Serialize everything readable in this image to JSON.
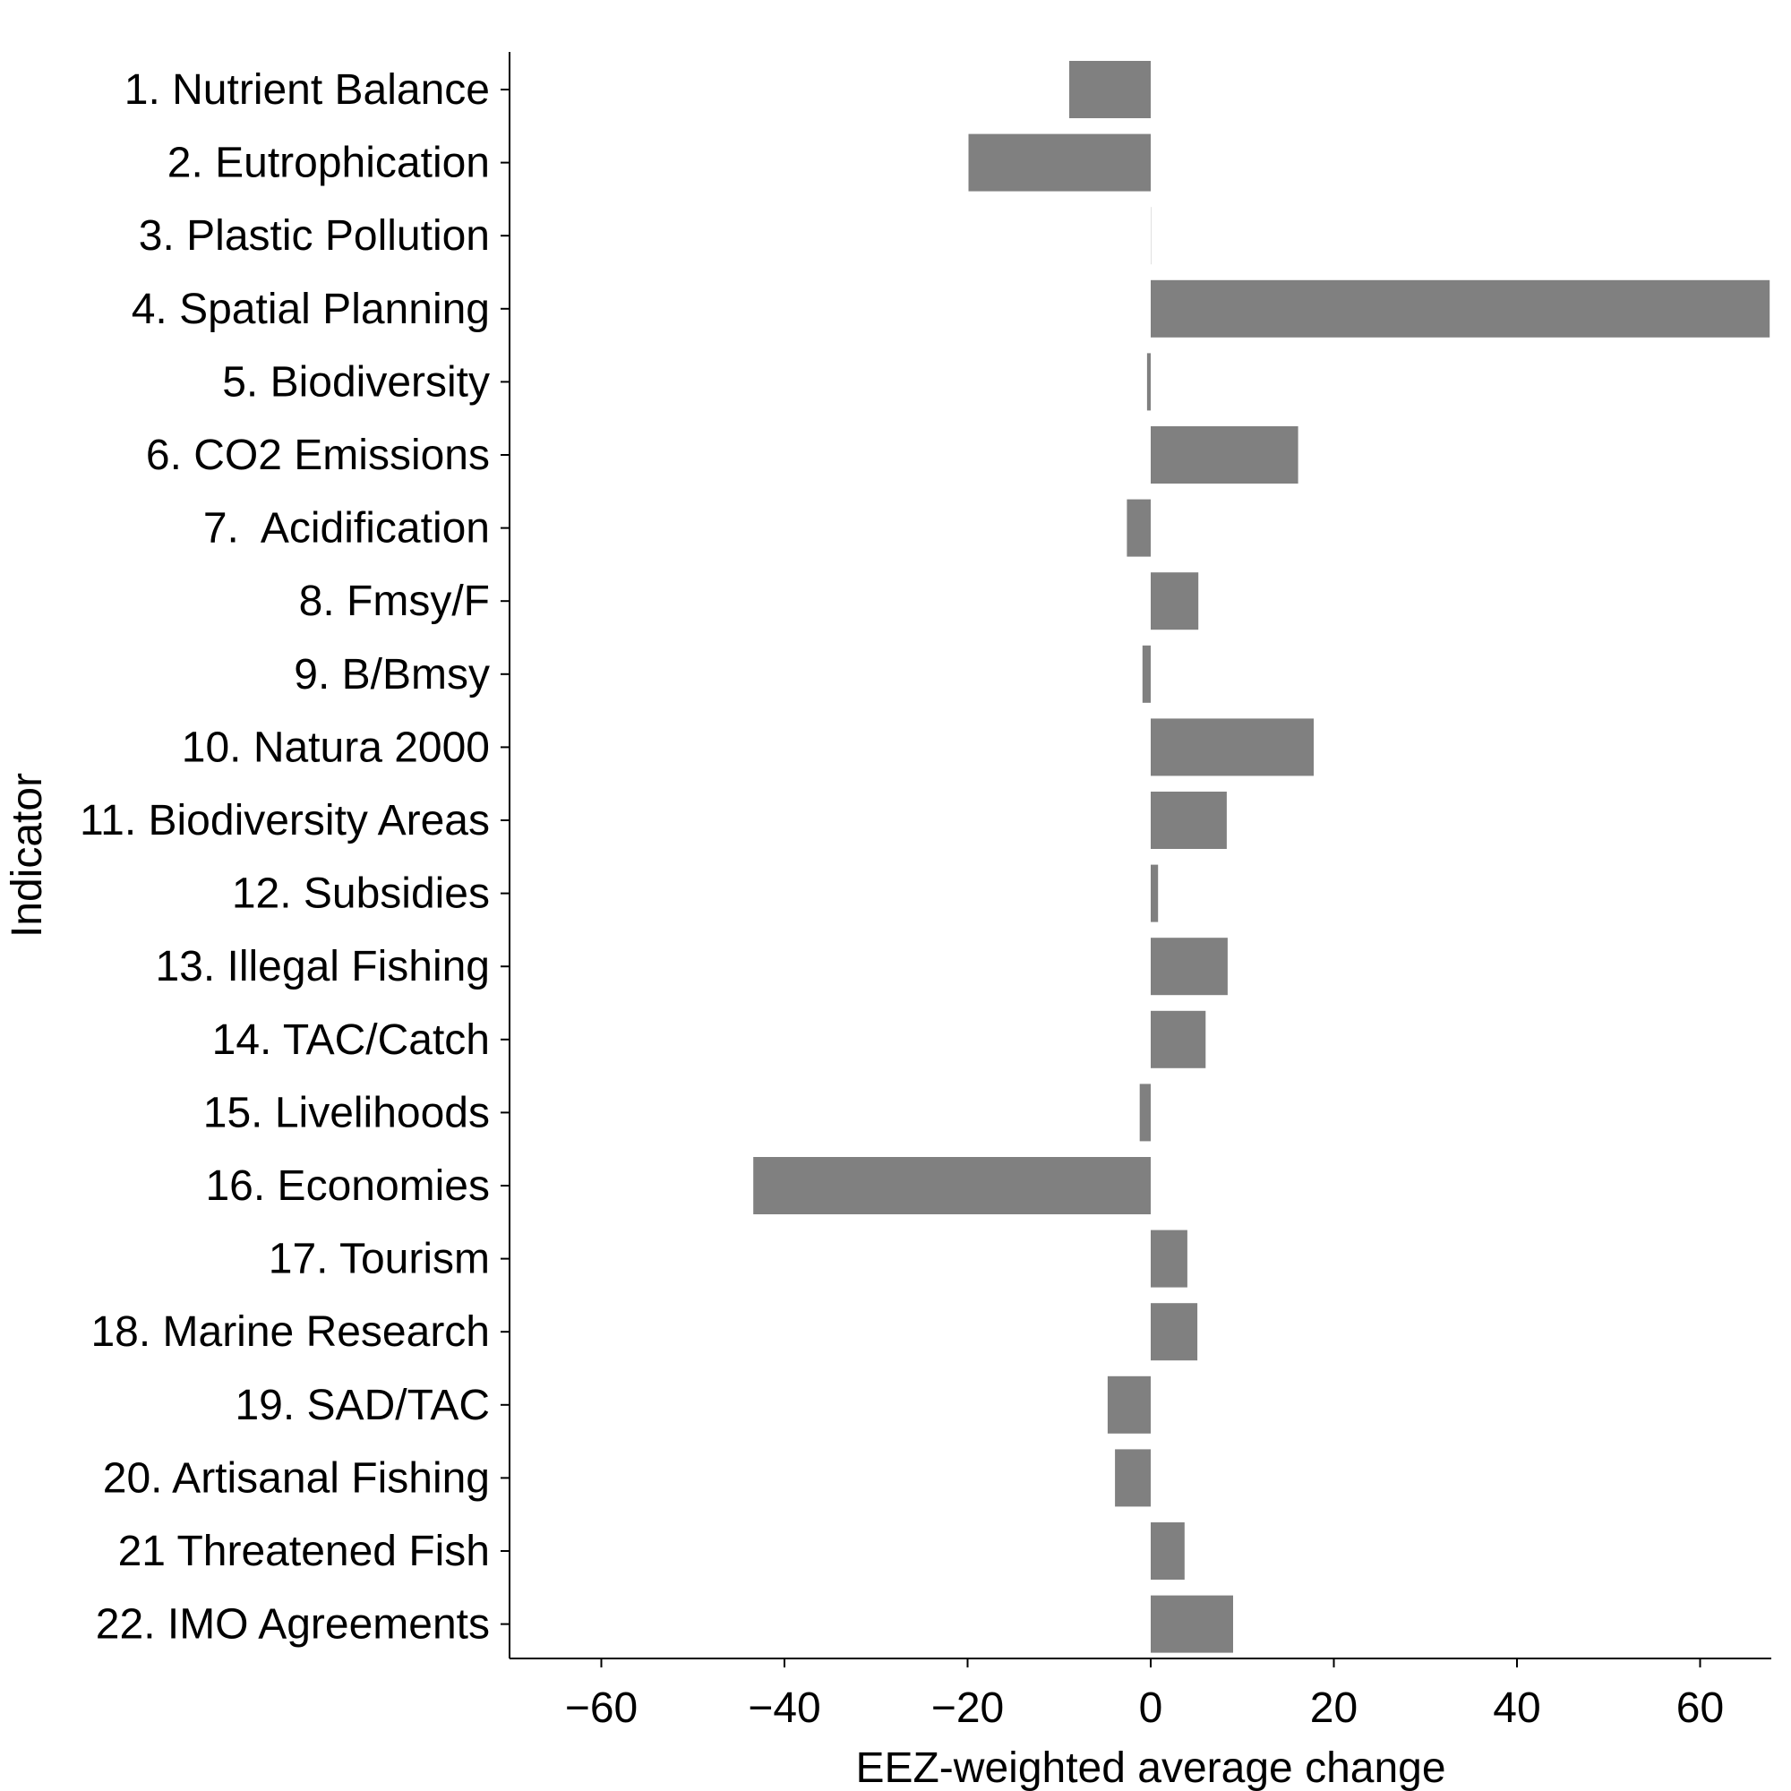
{
  "chart_data": {
    "type": "bar",
    "orientation": "horizontal",
    "xlabel": "EEZ-weighted average change",
    "ylabel": "Indicator",
    "xlim": [
      -69,
      68.5
    ],
    "x_ticks": [
      -60,
      -40,
      -20,
      0,
      20,
      40,
      60
    ],
    "x_tick_labels": [
      "−60",
      "−40",
      "−20",
      "0",
      "20",
      "40",
      "60"
    ],
    "grid": false,
    "bar_color": "#808080",
    "categories": [
      "1. Nutrient Balance",
      "2. Eutrophication",
      "3. Plastic Pollution",
      "4. Spatial Planning",
      "5. Biodiversity",
      "6. CO2 Emissions",
      "7.  Acidification",
      "8. Fmsy/F",
      "9. B/Bmsy",
      "10. Natura 2000",
      "11. Biodiversity Areas",
      "12. Subsidies",
      "13. Illegal Fishing",
      "14. TAC/Catch",
      "15. Livelihoods",
      "16. Economies",
      "17. Tourism",
      "18. Marine Research",
      "19. SAD/TAC",
      "20. Artisanal Fishing",
      "21 Threatened Fish",
      "22. IMO Agreements"
    ],
    "values": [
      -8.9,
      -19.9,
      0.0,
      67.6,
      -0.4,
      16.1,
      -2.6,
      5.2,
      -0.9,
      17.8,
      8.3,
      0.8,
      8.4,
      6.0,
      -1.2,
      -43.4,
      4.0,
      5.1,
      -4.7,
      -3.9,
      3.7,
      9.0
    ]
  }
}
